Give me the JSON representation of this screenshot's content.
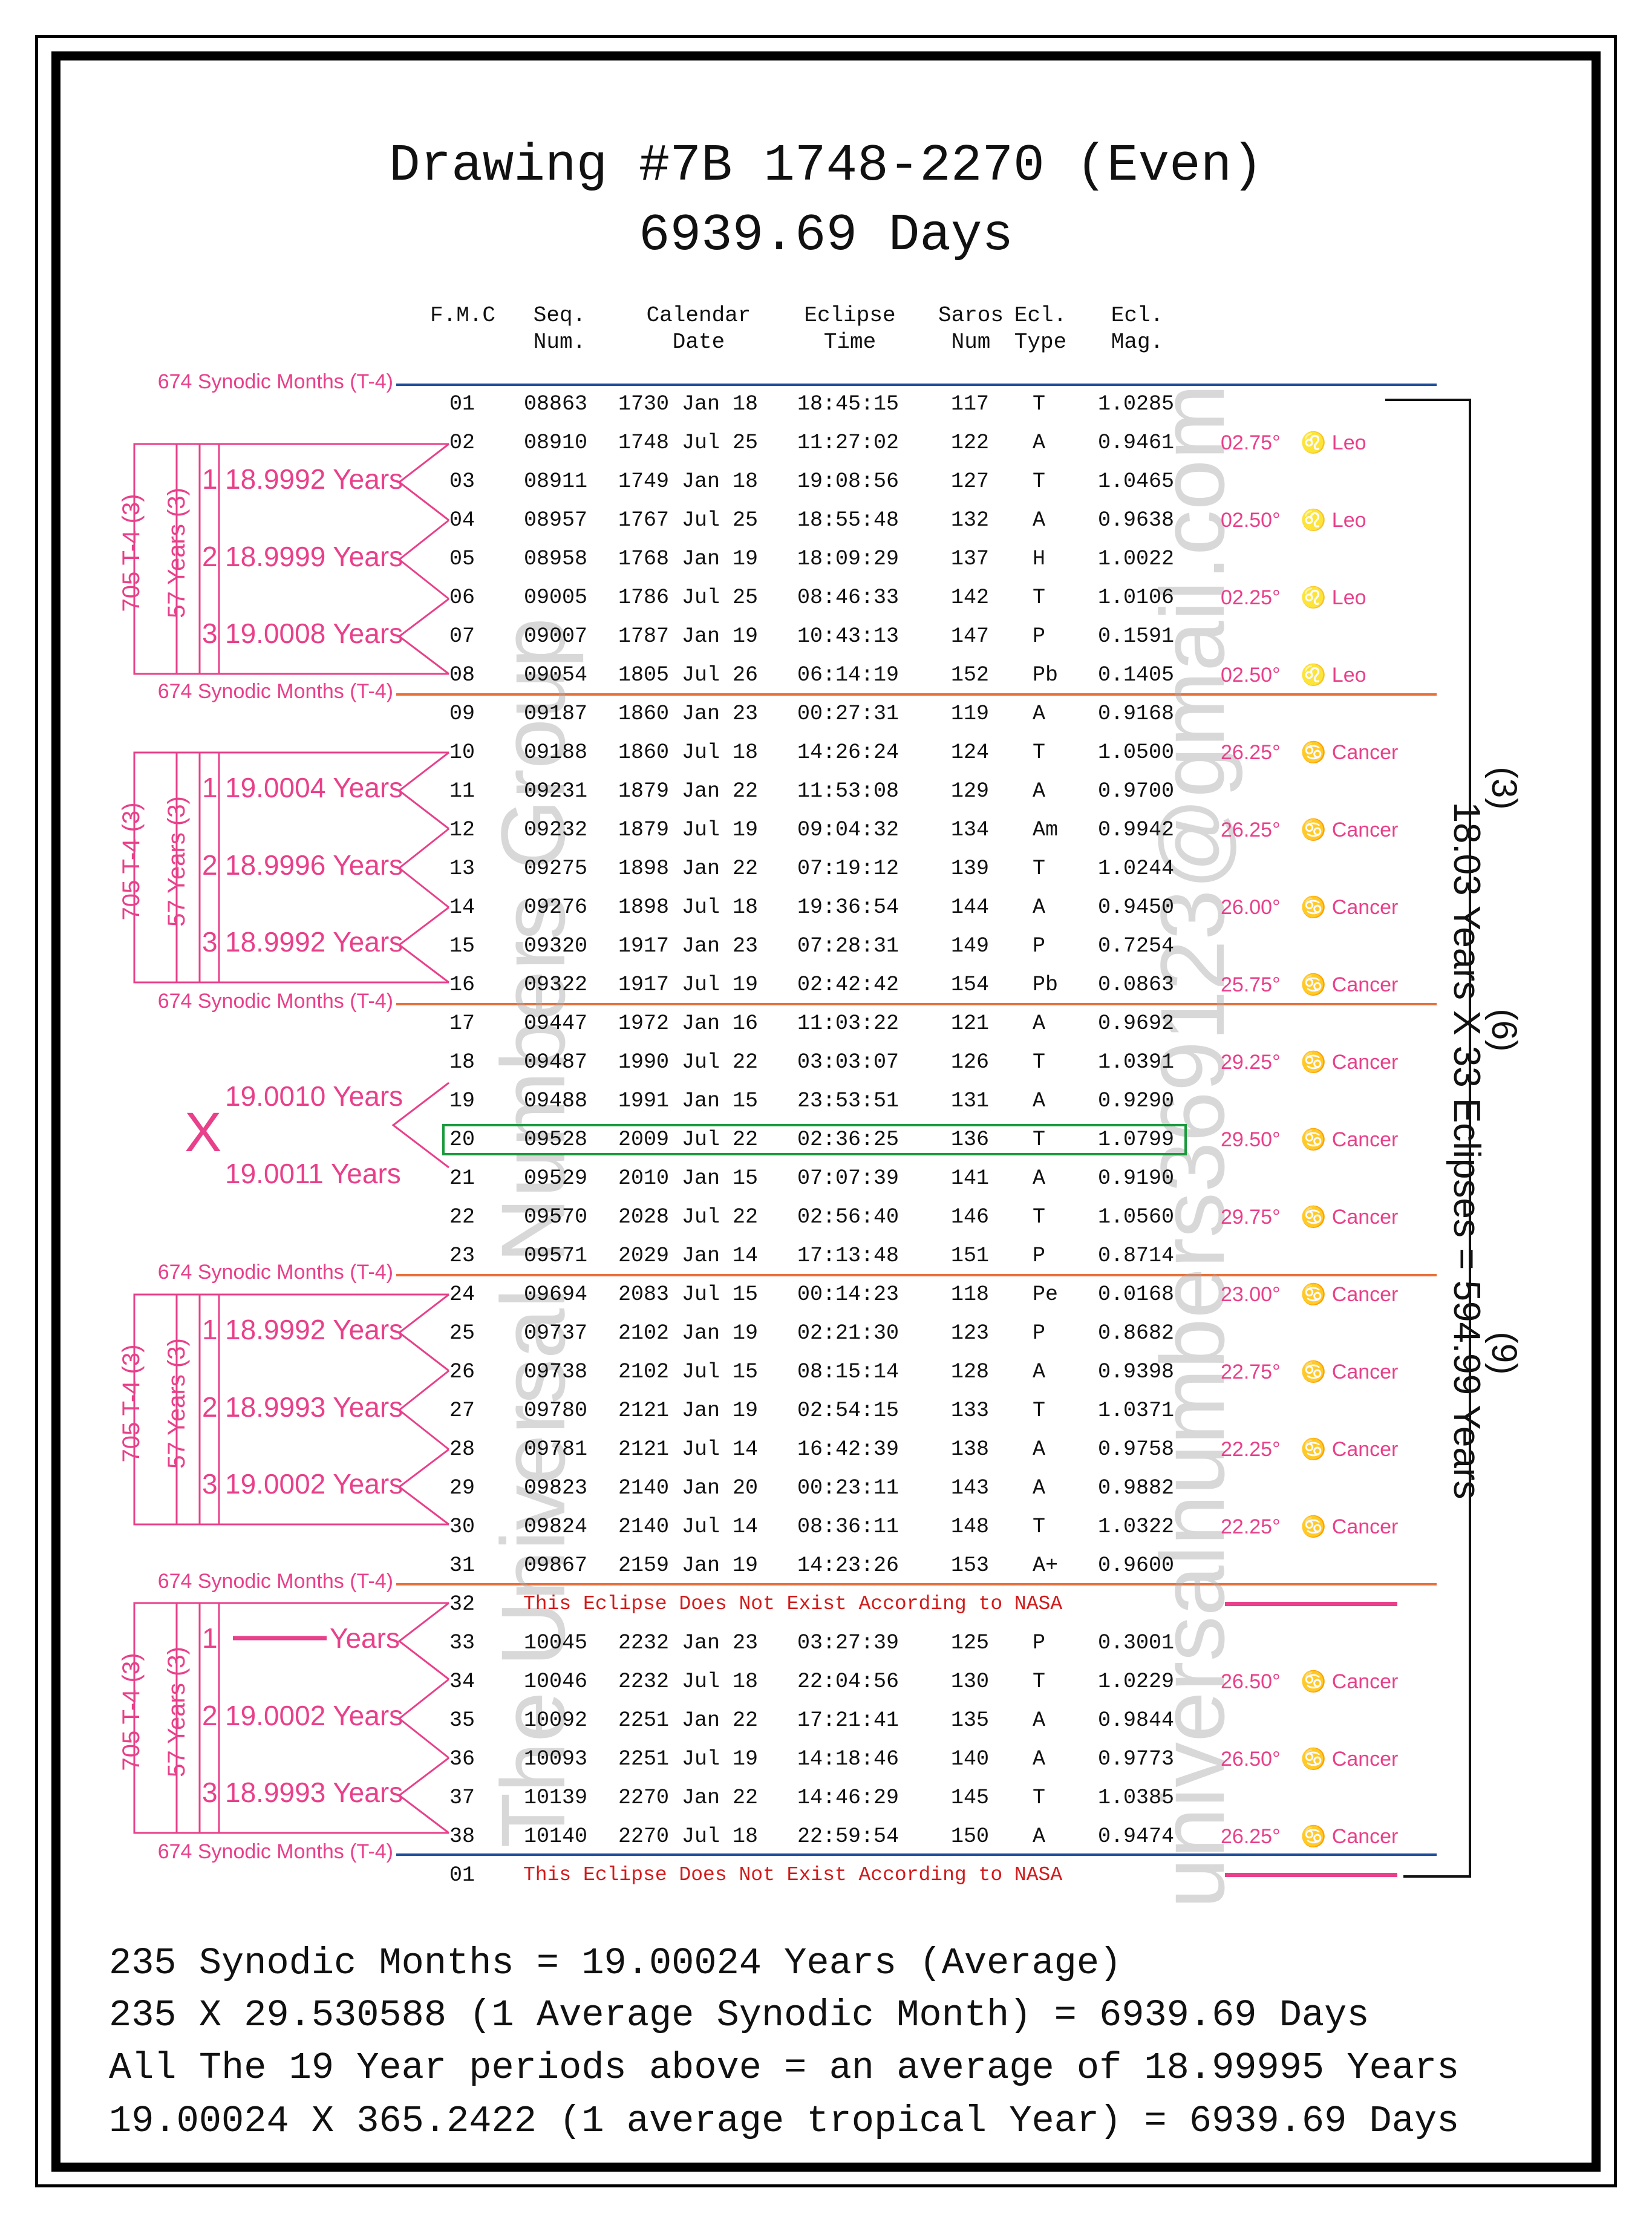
{
  "title_line1": "Drawing #7B 1748-2270 (Even)",
  "title_line2": "6939.69 Days",
  "headers": {
    "fmc": "F.M.C",
    "seq_1": "Seq.",
    "seq_2": "Num.",
    "cal_1": "Calendar",
    "cal_2": "Date",
    "ecl_1": "Eclipse",
    "ecl_2": "Time",
    "saros_1": "Saros",
    "saros_2": "Num",
    "type_1": "Ecl.",
    "type_2": "Type",
    "mag_1": "Ecl.",
    "mag_2": "Mag."
  },
  "synodic_label": "674 Synodic Months (T-4)",
  "group_t4_label": "705 T-4  (3)",
  "group_57_label": "57 Years (3)",
  "nasa_text": "This Eclipse Does Not Exist According to NASA",
  "years_word": "Years",
  "rows": [
    {
      "fmc": "01",
      "seq": "08863",
      "date": "1730 Jan 18",
      "time": "18:45:15",
      "saros": "117",
      "type": "T",
      "mag": "1.0285",
      "deg": "",
      "sign": ""
    },
    {
      "fmc": "02",
      "seq": "08910",
      "date": "1748 Jul 25",
      "time": "11:27:02",
      "saros": "122",
      "type": "A",
      "mag": "0.9461",
      "deg": "02.75°",
      "sign": "♌ Leo"
    },
    {
      "fmc": "03",
      "seq": "08911",
      "date": "1749 Jan 18",
      "time": "19:08:56",
      "saros": "127",
      "type": "T",
      "mag": "1.0465",
      "deg": "",
      "sign": ""
    },
    {
      "fmc": "04",
      "seq": "08957",
      "date": "1767 Jul 25",
      "time": "18:55:48",
      "saros": "132",
      "type": "A",
      "mag": "0.9638",
      "deg": "02.50°",
      "sign": "♌ Leo"
    },
    {
      "fmc": "05",
      "seq": "08958",
      "date": "1768 Jan 19",
      "time": "18:09:29",
      "saros": "137",
      "type": "H",
      "mag": "1.0022",
      "deg": "",
      "sign": ""
    },
    {
      "fmc": "06",
      "seq": "09005",
      "date": "1786 Jul 25",
      "time": "08:46:33",
      "saros": "142",
      "type": "T",
      "mag": "1.0106",
      "deg": "02.25°",
      "sign": "♌ Leo"
    },
    {
      "fmc": "07",
      "seq": "09007",
      "date": "1787 Jan 19",
      "time": "10:43:13",
      "saros": "147",
      "type": "P",
      "mag": "0.1591",
      "deg": "",
      "sign": ""
    },
    {
      "fmc": "08",
      "seq": "09054",
      "date": "1805 Jul 26",
      "time": "06:14:19",
      "saros": "152",
      "type": "Pb",
      "mag": "0.1405",
      "deg": "02.50°",
      "sign": "♌ Leo"
    },
    {
      "fmc": "09",
      "seq": "09187",
      "date": "1860 Jan 23",
      "time": "00:27:31",
      "saros": "119",
      "type": "A",
      "mag": "0.9168",
      "deg": "",
      "sign": ""
    },
    {
      "fmc": "10",
      "seq": "09188",
      "date": "1860 Jul 18",
      "time": "14:26:24",
      "saros": "124",
      "type": "T",
      "mag": "1.0500",
      "deg": "26.25°",
      "sign": "♋ Cancer"
    },
    {
      "fmc": "11",
      "seq": "09231",
      "date": "1879 Jan 22",
      "time": "11:53:08",
      "saros": "129",
      "type": "A",
      "mag": "0.9700",
      "deg": "",
      "sign": ""
    },
    {
      "fmc": "12",
      "seq": "09232",
      "date": "1879 Jul 19",
      "time": "09:04:32",
      "saros": "134",
      "type": "Am",
      "mag": "0.9942",
      "deg": "26.25°",
      "sign": "♋ Cancer"
    },
    {
      "fmc": "13",
      "seq": "09275",
      "date": "1898 Jan 22",
      "time": "07:19:12",
      "saros": "139",
      "type": "T",
      "mag": "1.0244",
      "deg": "",
      "sign": ""
    },
    {
      "fmc": "14",
      "seq": "09276",
      "date": "1898 Jul 18",
      "time": "19:36:54",
      "saros": "144",
      "type": "A",
      "mag": "0.9450",
      "deg": "26.00°",
      "sign": "♋ Cancer"
    },
    {
      "fmc": "15",
      "seq": "09320",
      "date": "1917 Jan 23",
      "time": "07:28:31",
      "saros": "149",
      "type": "P",
      "mag": "0.7254",
      "deg": "",
      "sign": ""
    },
    {
      "fmc": "16",
      "seq": "09322",
      "date": "1917 Jul 19",
      "time": "02:42:42",
      "saros": "154",
      "type": "Pb",
      "mag": "0.0863",
      "deg": "25.75°",
      "sign": "♋ Cancer"
    },
    {
      "fmc": "17",
      "seq": "09447",
      "date": "1972 Jan 16",
      "time": "11:03:22",
      "saros": "121",
      "type": "A",
      "mag": "0.9692",
      "deg": "",
      "sign": ""
    },
    {
      "fmc": "18",
      "seq": "09487",
      "date": "1990 Jul 22",
      "time": "03:03:07",
      "saros": "126",
      "type": "T",
      "mag": "1.0391",
      "deg": "29.25°",
      "sign": "♋ Cancer"
    },
    {
      "fmc": "19",
      "seq": "09488",
      "date": "1991 Jan 15",
      "time": "23:53:51",
      "saros": "131",
      "type": "A",
      "mag": "0.9290",
      "deg": "",
      "sign": ""
    },
    {
      "fmc": "20",
      "seq": "09528",
      "date": "2009 Jul 22",
      "time": "02:36:25",
      "saros": "136",
      "type": "T",
      "mag": "1.0799",
      "deg": "29.50°",
      "sign": "♋ Cancer"
    },
    {
      "fmc": "21",
      "seq": "09529",
      "date": "2010 Jan 15",
      "time": "07:07:39",
      "saros": "141",
      "type": "A",
      "mag": "0.9190",
      "deg": "",
      "sign": ""
    },
    {
      "fmc": "22",
      "seq": "09570",
      "date": "2028 Jul 22",
      "time": "02:56:40",
      "saros": "146",
      "type": "T",
      "mag": "1.0560",
      "deg": "29.75°",
      "sign": "♋ Cancer"
    },
    {
      "fmc": "23",
      "seq": "09571",
      "date": "2029 Jan 14",
      "time": "17:13:48",
      "saros": "151",
      "type": "P",
      "mag": "0.8714",
      "deg": "",
      "sign": ""
    },
    {
      "fmc": "24",
      "seq": "09694",
      "date": "2083 Jul 15",
      "time": "00:14:23",
      "saros": "118",
      "type": "Pe",
      "mag": "0.0168",
      "deg": "23.00°",
      "sign": "♋ Cancer"
    },
    {
      "fmc": "25",
      "seq": "09737",
      "date": "2102 Jan 19",
      "time": "02:21:30",
      "saros": "123",
      "type": "P",
      "mag": "0.8682",
      "deg": "",
      "sign": ""
    },
    {
      "fmc": "26",
      "seq": "09738",
      "date": "2102 Jul 15",
      "time": "08:15:14",
      "saros": "128",
      "type": "A",
      "mag": "0.9398",
      "deg": "22.75°",
      "sign": "♋ Cancer"
    },
    {
      "fmc": "27",
      "seq": "09780",
      "date": "2121 Jan 19",
      "time": "02:54:15",
      "saros": "133",
      "type": "T",
      "mag": "1.0371",
      "deg": "",
      "sign": ""
    },
    {
      "fmc": "28",
      "seq": "09781",
      "date": "2121 Jul 14",
      "time": "16:42:39",
      "saros": "138",
      "type": "A",
      "mag": "0.9758",
      "deg": "22.25°",
      "sign": "♋ Cancer"
    },
    {
      "fmc": "29",
      "seq": "09823",
      "date": "2140 Jan 20",
      "time": "00:23:11",
      "saros": "143",
      "type": "A",
      "mag": "0.9882",
      "deg": "",
      "sign": ""
    },
    {
      "fmc": "30",
      "seq": "09824",
      "date": "2140 Jul 14",
      "time": "08:36:11",
      "saros": "148",
      "type": "T",
      "mag": "1.0322",
      "deg": "22.25°",
      "sign": "♋ Cancer"
    },
    {
      "fmc": "31",
      "seq": "09867",
      "date": "2159 Jan 19",
      "time": "14:23:26",
      "saros": "153",
      "type": "A+",
      "mag": "0.9600",
      "deg": "",
      "sign": ""
    },
    {
      "fmc": "32",
      "nasa": true
    },
    {
      "fmc": "33",
      "seq": "10045",
      "date": "2232 Jan 23",
      "time": "03:27:39",
      "saros": "125",
      "type": "P",
      "mag": "0.3001",
      "deg": "",
      "sign": ""
    },
    {
      "fmc": "34",
      "seq": "10046",
      "date": "2232 Jul 18",
      "time": "22:04:56",
      "saros": "130",
      "type": "T",
      "mag": "1.0229",
      "deg": "26.50°",
      "sign": "♋ Cancer"
    },
    {
      "fmc": "35",
      "seq": "10092",
      "date": "2251 Jan 22",
      "time": "17:21:41",
      "saros": "135",
      "type": "A",
      "mag": "0.9844",
      "deg": "",
      "sign": ""
    },
    {
      "fmc": "36",
      "seq": "10093",
      "date": "2251 Jul 19",
      "time": "14:18:46",
      "saros": "140",
      "type": "A",
      "mag": "0.9773",
      "deg": "26.50°",
      "sign": "♋ Cancer"
    },
    {
      "fmc": "37",
      "seq": "10139",
      "date": "2270 Jan 22",
      "time": "14:46:29",
      "saros": "145",
      "type": "T",
      "mag": "1.0385",
      "deg": "",
      "sign": ""
    },
    {
      "fmc": "38",
      "seq": "10140",
      "date": "2270 Jul 18",
      "time": "22:59:54",
      "saros": "150",
      "type": "A",
      "mag": "0.9474",
      "deg": "26.25°",
      "sign": "♋ Cancer"
    },
    {
      "fmc": "01",
      "nasa": true
    }
  ],
  "groups": [
    {
      "y1": "18.9992 Years",
      "y2": "18.9999 Years",
      "y3": "19.0008 Years"
    },
    {
      "y1": "19.0004 Years",
      "y2": "18.9996 Years",
      "y3": "18.9992 Years"
    },
    {
      "y1": "18.9992 Years",
      "y2": "18.9993 Years",
      "y3": "19.0002 Years"
    },
    {
      "y1": "",
      "y2": "19.0002 Years",
      "y3": "18.9993 Years"
    }
  ],
  "middle": {
    "mark": "X",
    "upper": "19.0010 Years",
    "lower": "19.0011 Years"
  },
  "right_label": {
    "main": "18.03 Years X 33 Eclipses = 594.99 Years",
    "sup1": "(3)",
    "sup2": "(6)",
    "sup3": "(9)"
  },
  "footer": [
    "235 Synodic Months = 19.00024 Years (Average)",
    "235 X 29.530588 (1 Average Synodic Month) = 6939.69 Days",
    "All The 19 Year periods above = an average of 18.99995 Years",
    "19.00024 X 365.2422 (1 average tropical Year) = 6939.69 Days"
  ],
  "watermark_left": "The Universal Numbers Group",
  "watermark_right": "universalnumbers369123@gmail.com",
  "colors": {
    "pink": "#e8408a",
    "orange": "#e8703a",
    "blue": "#1f4f9a",
    "green": "#1a9a3c",
    "red": "#d21b1b"
  }
}
